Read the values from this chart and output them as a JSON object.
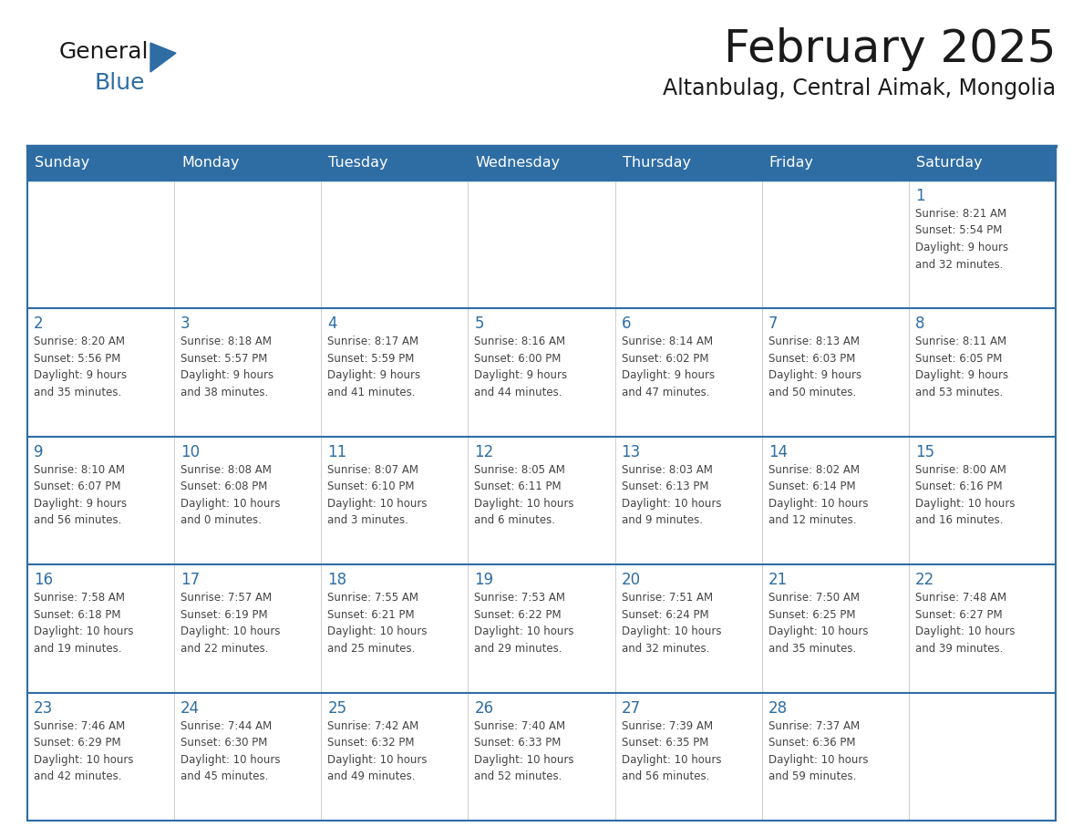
{
  "title": "February 2025",
  "subtitle": "Altanbulag, Central Aimak, Mongolia",
  "days_of_week": [
    "Sunday",
    "Monday",
    "Tuesday",
    "Wednesday",
    "Thursday",
    "Friday",
    "Saturday"
  ],
  "header_bg": "#2E6DA4",
  "header_text_color": "#FFFFFF",
  "cell_bg": "#FFFFFF",
  "row_sep_color": "#2E6DA4",
  "outer_border_color": "#2E6DA4",
  "day_number_color": "#2E6DA4",
  "cell_text_color": "#444444",
  "logo_triangle_color": "#2E6DA4",
  "logo_blue_color": "#2E6DA4",
  "calendar_data": [
    [
      {
        "day": null,
        "info": null
      },
      {
        "day": null,
        "info": null
      },
      {
        "day": null,
        "info": null
      },
      {
        "day": null,
        "info": null
      },
      {
        "day": null,
        "info": null
      },
      {
        "day": null,
        "info": null
      },
      {
        "day": 1,
        "info": "Sunrise: 8:21 AM\nSunset: 5:54 PM\nDaylight: 9 hours\nand 32 minutes."
      }
    ],
    [
      {
        "day": 2,
        "info": "Sunrise: 8:20 AM\nSunset: 5:56 PM\nDaylight: 9 hours\nand 35 minutes."
      },
      {
        "day": 3,
        "info": "Sunrise: 8:18 AM\nSunset: 5:57 PM\nDaylight: 9 hours\nand 38 minutes."
      },
      {
        "day": 4,
        "info": "Sunrise: 8:17 AM\nSunset: 5:59 PM\nDaylight: 9 hours\nand 41 minutes."
      },
      {
        "day": 5,
        "info": "Sunrise: 8:16 AM\nSunset: 6:00 PM\nDaylight: 9 hours\nand 44 minutes."
      },
      {
        "day": 6,
        "info": "Sunrise: 8:14 AM\nSunset: 6:02 PM\nDaylight: 9 hours\nand 47 minutes."
      },
      {
        "day": 7,
        "info": "Sunrise: 8:13 AM\nSunset: 6:03 PM\nDaylight: 9 hours\nand 50 minutes."
      },
      {
        "day": 8,
        "info": "Sunrise: 8:11 AM\nSunset: 6:05 PM\nDaylight: 9 hours\nand 53 minutes."
      }
    ],
    [
      {
        "day": 9,
        "info": "Sunrise: 8:10 AM\nSunset: 6:07 PM\nDaylight: 9 hours\nand 56 minutes."
      },
      {
        "day": 10,
        "info": "Sunrise: 8:08 AM\nSunset: 6:08 PM\nDaylight: 10 hours\nand 0 minutes."
      },
      {
        "day": 11,
        "info": "Sunrise: 8:07 AM\nSunset: 6:10 PM\nDaylight: 10 hours\nand 3 minutes."
      },
      {
        "day": 12,
        "info": "Sunrise: 8:05 AM\nSunset: 6:11 PM\nDaylight: 10 hours\nand 6 minutes."
      },
      {
        "day": 13,
        "info": "Sunrise: 8:03 AM\nSunset: 6:13 PM\nDaylight: 10 hours\nand 9 minutes."
      },
      {
        "day": 14,
        "info": "Sunrise: 8:02 AM\nSunset: 6:14 PM\nDaylight: 10 hours\nand 12 minutes."
      },
      {
        "day": 15,
        "info": "Sunrise: 8:00 AM\nSunset: 6:16 PM\nDaylight: 10 hours\nand 16 minutes."
      }
    ],
    [
      {
        "day": 16,
        "info": "Sunrise: 7:58 AM\nSunset: 6:18 PM\nDaylight: 10 hours\nand 19 minutes."
      },
      {
        "day": 17,
        "info": "Sunrise: 7:57 AM\nSunset: 6:19 PM\nDaylight: 10 hours\nand 22 minutes."
      },
      {
        "day": 18,
        "info": "Sunrise: 7:55 AM\nSunset: 6:21 PM\nDaylight: 10 hours\nand 25 minutes."
      },
      {
        "day": 19,
        "info": "Sunrise: 7:53 AM\nSunset: 6:22 PM\nDaylight: 10 hours\nand 29 minutes."
      },
      {
        "day": 20,
        "info": "Sunrise: 7:51 AM\nSunset: 6:24 PM\nDaylight: 10 hours\nand 32 minutes."
      },
      {
        "day": 21,
        "info": "Sunrise: 7:50 AM\nSunset: 6:25 PM\nDaylight: 10 hours\nand 35 minutes."
      },
      {
        "day": 22,
        "info": "Sunrise: 7:48 AM\nSunset: 6:27 PM\nDaylight: 10 hours\nand 39 minutes."
      }
    ],
    [
      {
        "day": 23,
        "info": "Sunrise: 7:46 AM\nSunset: 6:29 PM\nDaylight: 10 hours\nand 42 minutes."
      },
      {
        "day": 24,
        "info": "Sunrise: 7:44 AM\nSunset: 6:30 PM\nDaylight: 10 hours\nand 45 minutes."
      },
      {
        "day": 25,
        "info": "Sunrise: 7:42 AM\nSunset: 6:32 PM\nDaylight: 10 hours\nand 49 minutes."
      },
      {
        "day": 26,
        "info": "Sunrise: 7:40 AM\nSunset: 6:33 PM\nDaylight: 10 hours\nand 52 minutes."
      },
      {
        "day": 27,
        "info": "Sunrise: 7:39 AM\nSunset: 6:35 PM\nDaylight: 10 hours\nand 56 minutes."
      },
      {
        "day": 28,
        "info": "Sunrise: 7:37 AM\nSunset: 6:36 PM\nDaylight: 10 hours\nand 59 minutes."
      },
      {
        "day": null,
        "info": null
      }
    ]
  ]
}
